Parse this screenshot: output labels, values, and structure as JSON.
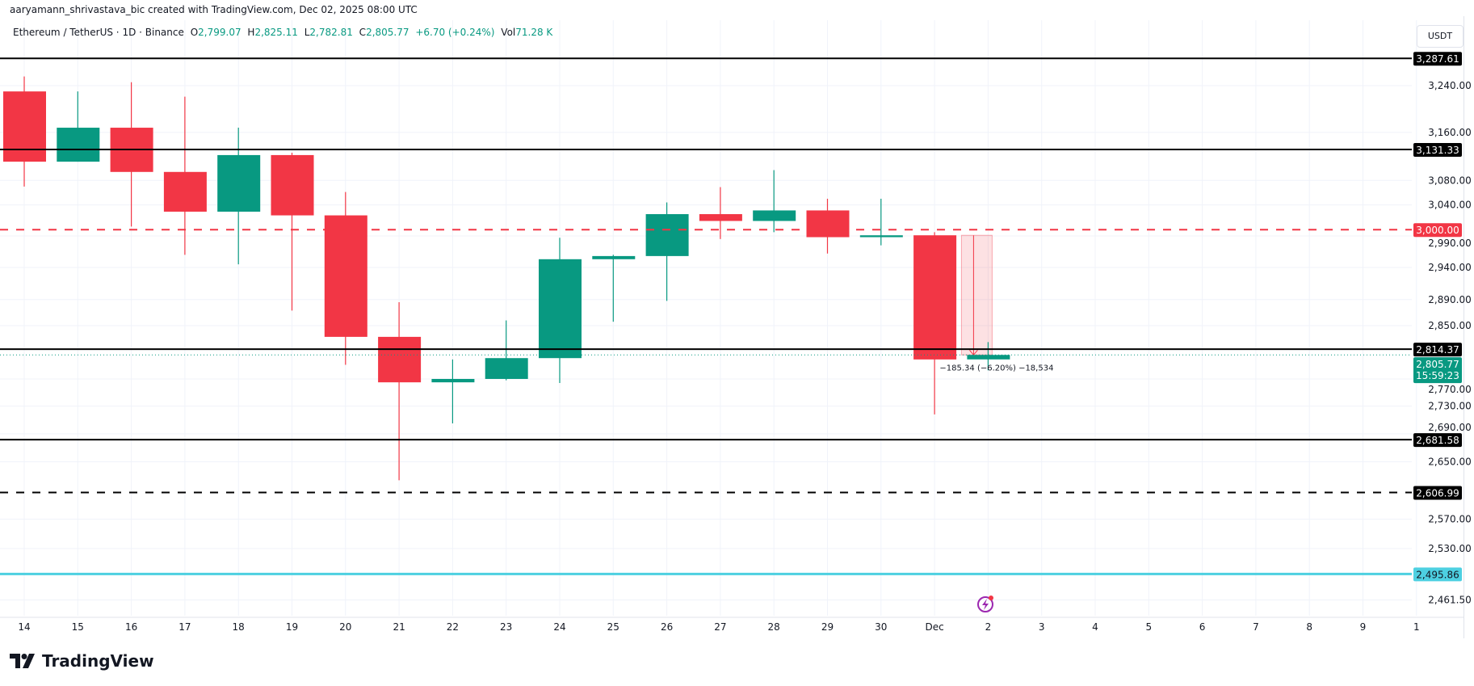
{
  "credit": "aaryamann_shrivastava_bic created with TradingView.com, Dec 02, 2025 08:00 UTC",
  "legend": {
    "symbol": "Ethereum / TetherUS · 1D · Binance",
    "o_label": "O",
    "o": "2,799.07",
    "h_label": "H",
    "h": "2,825.11",
    "l_label": "L",
    "l": "2,782.81",
    "c_label": "C",
    "c": "2,805.77",
    "change": "+6.70 (+0.24%)",
    "vol_label": "Vol",
    "vol": "71.28 K"
  },
  "currency_button": "USDT",
  "logo_text": "TradingView",
  "colors": {
    "up": "#089981",
    "down": "#f23645",
    "cyan": "#4dd0e1",
    "grid": "#f0f3fa"
  },
  "chart_data": {
    "type": "candlestick",
    "y_scale": "log",
    "grid": true,
    "x_tick_labels": [
      "14",
      "15",
      "16",
      "17",
      "18",
      "19",
      "20",
      "21",
      "22",
      "23",
      "24",
      "25",
      "26",
      "27",
      "28",
      "29",
      "30",
      "Dec",
      "2",
      "3",
      "4",
      "5",
      "6",
      "7",
      "8",
      "9",
      "1"
    ],
    "y_tick_labels": [
      "3,240.00",
      "3,160.00",
      "3,080.00",
      "3,040.00",
      "2,990.00",
      "2,940.00",
      "2,890.00",
      "2,850.00",
      "2,770.00",
      "2,730.00",
      "2,690.00",
      "2,650.00",
      "2,570.00",
      "2,530.00",
      "2,461.50"
    ],
    "y_ticks": [
      3240,
      3160,
      3080,
      3040,
      2990,
      2940,
      2890,
      2850,
      2770,
      2730,
      2690,
      2650,
      2570,
      2530,
      2461.5
    ],
    "candles": [
      {
        "date": "14",
        "o": 3230,
        "h": 3256,
        "l": 3070,
        "c": 3111
      },
      {
        "date": "15",
        "o": 3111,
        "h": 3230,
        "l": 3111,
        "c": 3168
      },
      {
        "date": "16",
        "o": 3168,
        "h": 3246,
        "l": 3005,
        "c": 3094
      },
      {
        "date": "17",
        "o": 3094,
        "h": 3221,
        "l": 2960,
        "c": 3029
      },
      {
        "date": "18",
        "o": 3029,
        "h": 3168,
        "l": 2945,
        "c": 3122
      },
      {
        "date": "19",
        "o": 3122,
        "h": 3126,
        "l": 2873,
        "c": 3023
      },
      {
        "date": "20",
        "o": 3023,
        "h": 3061,
        "l": 2791,
        "c": 2833
      },
      {
        "date": "21",
        "o": 2833,
        "h": 2886,
        "l": 2624,
        "c": 2765
      },
      {
        "date": "22",
        "o": 2765,
        "h": 2799,
        "l": 2705,
        "c": 2770
      },
      {
        "date": "23",
        "o": 2770,
        "h": 2858,
        "l": 2768,
        "c": 2801
      },
      {
        "date": "24",
        "o": 2801,
        "h": 2987,
        "l": 2764,
        "c": 2953
      },
      {
        "date": "25",
        "o": 2953,
        "h": 2960,
        "l": 2856,
        "c": 2958
      },
      {
        "date": "26",
        "o": 2958,
        "h": 3044,
        "l": 2888,
        "c": 3025
      },
      {
        "date": "27",
        "o": 3025,
        "h": 3069,
        "l": 2985,
        "c": 3014
      },
      {
        "date": "28",
        "o": 3014,
        "h": 3097,
        "l": 2996,
        "c": 3031
      },
      {
        "date": "29",
        "o": 3031,
        "h": 3050,
        "l": 2962,
        "c": 2988
      },
      {
        "date": "30",
        "o": 2988,
        "h": 3050,
        "l": 2975,
        "c": 2991
      },
      {
        "date": "Dec",
        "o": 2991,
        "h": 2996,
        "l": 2718,
        "c": 2799
      },
      {
        "date": "2",
        "o": 2799.07,
        "h": 2825.11,
        "l": 2782.81,
        "c": 2805.77
      }
    ],
    "horizontal_lines": [
      {
        "price": 3287.61,
        "label": "3,287.61",
        "color": "#000000",
        "style": "solid"
      },
      {
        "price": 3131.33,
        "label": "3,131.33",
        "color": "#000000",
        "style": "solid"
      },
      {
        "price": 3000.0,
        "label": "3,000.00",
        "color": "#f23645",
        "style": "dashed"
      },
      {
        "price": 2814.37,
        "label": "2,814.37",
        "color": "#000000",
        "style": "solid"
      },
      {
        "price": 2681.58,
        "label": "2,681.58",
        "color": "#000000",
        "style": "solid"
      },
      {
        "price": 2606.99,
        "label": "2,606.99",
        "color": "#000000",
        "style": "dashed"
      },
      {
        "price": 2495.86,
        "label": "2,495.86",
        "color": "#4dd0e1",
        "style": "solid"
      }
    ],
    "last_price": {
      "price": 2805.77,
      "label": "2,805.77",
      "countdown": "15:59:23"
    },
    "measure": {
      "from": 2991,
      "to": 2805.77,
      "text": "−185.34 (−6.20%) −18,534"
    }
  }
}
